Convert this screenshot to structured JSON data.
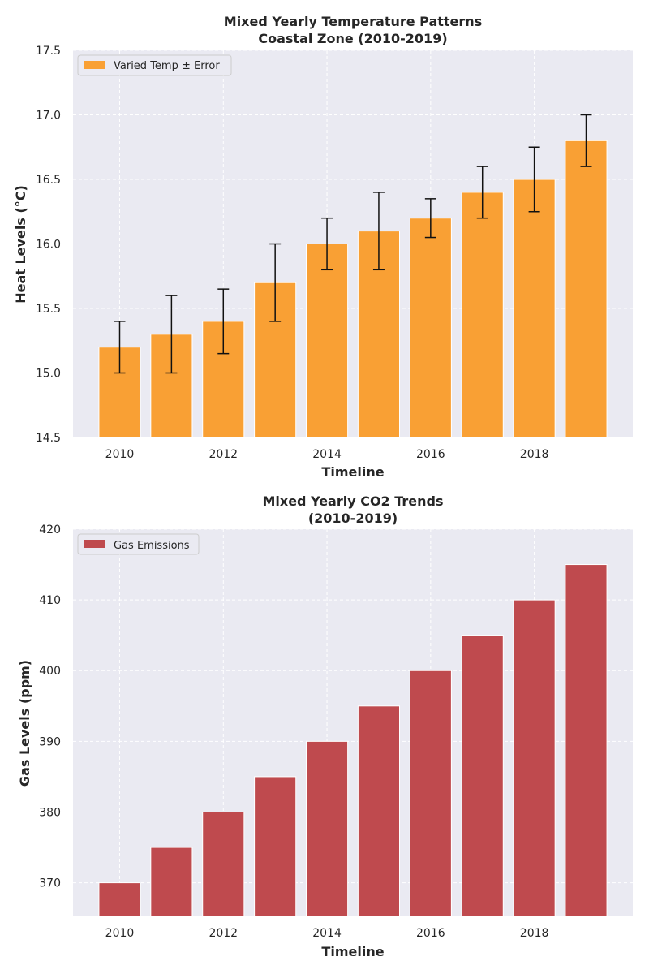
{
  "chart_data": [
    {
      "type": "bar",
      "title_line1": "Mixed Yearly Temperature Patterns",
      "title_line2": "Coastal Zone (2010-2019)",
      "xlabel": "Timeline",
      "ylabel": "Heat Levels (°C)",
      "x": [
        2010,
        2011,
        2012,
        2013,
        2014,
        2015,
        2016,
        2017,
        2018,
        2019
      ],
      "series": [
        {
          "name": "Varied Temp ± Error",
          "values": [
            15.2,
            15.3,
            15.4,
            15.7,
            16.0,
            16.1,
            16.2,
            16.4,
            16.5,
            16.8
          ],
          "errors": [
            0.2,
            0.3,
            0.25,
            0.3,
            0.2,
            0.3,
            0.15,
            0.2,
            0.25,
            0.2
          ],
          "color": "#f9a034"
        }
      ],
      "ylim": [
        14.5,
        17.5
      ],
      "xlim": [
        2009.1,
        2019.9
      ],
      "xticks": [
        "2010",
        "2012",
        "2014",
        "2016",
        "2018"
      ],
      "yticks": [
        "14.5",
        "15.0",
        "15.5",
        "16.0",
        "16.5",
        "17.0",
        "17.5"
      ],
      "grid": true,
      "legend_position": "upper-left"
    },
    {
      "type": "bar",
      "title_line1": "Mixed Yearly CO2 Trends",
      "title_line2": "(2010-2019)",
      "xlabel": "Timeline",
      "ylabel": "Gas Levels (ppm)",
      "x": [
        2010,
        2011,
        2012,
        2013,
        2014,
        2015,
        2016,
        2017,
        2018,
        2019
      ],
      "series": [
        {
          "name": "Gas Emissions",
          "values": [
            370,
            375,
            380,
            385,
            390,
            395,
            400,
            405,
            410,
            415
          ],
          "color": "#bf4a4e"
        }
      ],
      "ylim": [
        365.25,
        420
      ],
      "xlim": [
        2009.1,
        2019.9
      ],
      "xticks": [
        "2010",
        "2012",
        "2014",
        "2016",
        "2018"
      ],
      "yticks": [
        "370",
        "380",
        "390",
        "400",
        "410",
        "420"
      ],
      "grid": true,
      "legend_position": "upper-left"
    }
  ]
}
